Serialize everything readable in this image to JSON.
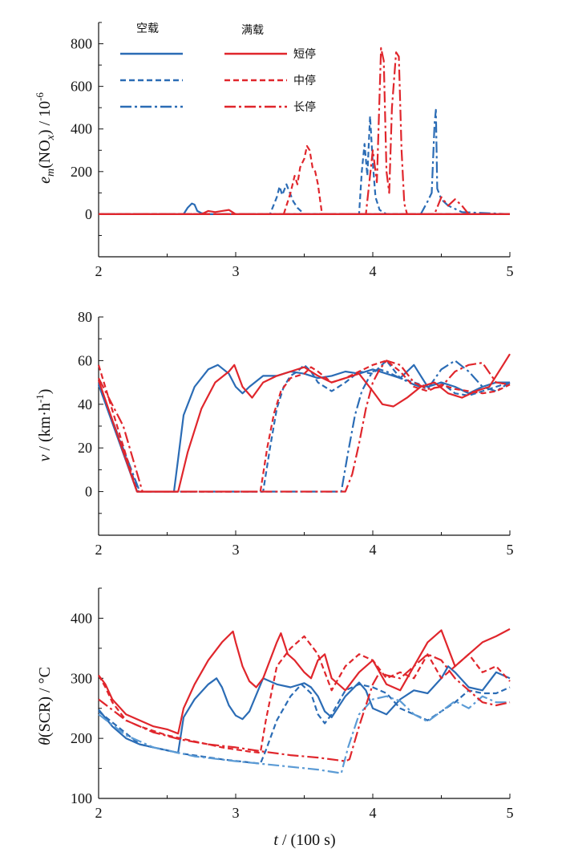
{
  "legend": {
    "group_empty": "空载",
    "group_full": "满载",
    "short": "短停",
    "medium": "中停",
    "long": "长停"
  },
  "colors": {
    "blue": "#2b6cb5",
    "light_blue": "#5b9bd5",
    "red": "#e0262c"
  },
  "chart_data": [
    {
      "type": "line",
      "id": "nox",
      "ylabel_parts": [
        "e",
        "m",
        "(NO",
        "x",
        ") / 10",
        "-6"
      ],
      "xlim": [
        2,
        5
      ],
      "ylim": [
        -200,
        900
      ],
      "xticks": [
        2,
        3,
        4,
        5
      ],
      "yticks": [
        0,
        200,
        400,
        600,
        800
      ],
      "series": [
        {
          "name": "空载-短停",
          "color": "blue",
          "dash": "solid",
          "x": [
            2.0,
            2.62,
            2.65,
            2.68,
            2.7,
            2.72,
            2.75,
            2.8,
            5.0
          ],
          "y": [
            0,
            0,
            30,
            50,
            45,
            15,
            5,
            0,
            0
          ]
        },
        {
          "name": "空载-中停",
          "color": "blue",
          "dash": "dash",
          "x": [
            2.0,
            3.25,
            3.3,
            3.32,
            3.34,
            3.37,
            3.42,
            3.45,
            3.5,
            3.9,
            3.92,
            3.94,
            3.96,
            3.98,
            4.0,
            4.02,
            4.05,
            4.1,
            5.0
          ],
          "y": [
            0,
            0,
            80,
            130,
            90,
            140,
            60,
            30,
            0,
            0,
            200,
            330,
            180,
            460,
            240,
            80,
            20,
            0,
            0
          ]
        },
        {
          "name": "空载-长停",
          "color": "blue",
          "dash": "dashdot",
          "x": [
            2.0,
            4.35,
            4.4,
            4.43,
            4.45,
            4.46,
            4.47,
            4.5,
            4.55,
            4.65,
            5.0
          ],
          "y": [
            0,
            0,
            60,
            100,
            420,
            490,
            120,
            70,
            40,
            10,
            0
          ]
        },
        {
          "name": "满载-短停",
          "color": "red",
          "dash": "solid",
          "x": [
            2.0,
            2.75,
            2.8,
            2.85,
            2.9,
            2.95,
            3.0,
            5.0
          ],
          "y": [
            0,
            0,
            15,
            10,
            15,
            20,
            0,
            0
          ]
        },
        {
          "name": "满载-中停",
          "color": "red",
          "dash": "dash",
          "x": [
            2.0,
            3.35,
            3.4,
            3.43,
            3.45,
            3.47,
            3.5,
            3.52,
            3.54,
            3.56,
            3.58,
            3.6,
            3.63,
            5.0
          ],
          "y": [
            0,
            0,
            100,
            180,
            140,
            220,
            260,
            320,
            300,
            220,
            200,
            140,
            0,
            0
          ]
        },
        {
          "name": "满载-长停",
          "color": "red",
          "dash": "dashdot",
          "x": [
            2.0,
            3.95,
            4.0,
            4.03,
            4.06,
            4.08,
            4.1,
            4.12,
            4.14,
            4.17,
            4.19,
            4.21,
            4.23,
            4.25,
            4.45,
            4.5,
            4.55,
            4.6,
            4.65,
            4.7,
            5.0
          ],
          "y": [
            0,
            0,
            300,
            150,
            780,
            720,
            200,
            100,
            500,
            760,
            740,
            300,
            50,
            0,
            0,
            80,
            40,
            70,
            40,
            0,
            0
          ]
        }
      ]
    },
    {
      "type": "line",
      "id": "speed",
      "ylabel_parts": [
        "v",
        " / (km·h",
        "-1",
        ")"
      ],
      "xlim": [
        2,
        5
      ],
      "ylim": [
        -20,
        80
      ],
      "xticks": [
        2,
        3,
        4,
        5
      ],
      "yticks": [
        0,
        20,
        40,
        60,
        80
      ],
      "series": [
        {
          "name": "空载-短停",
          "color": "blue",
          "dash": "solid",
          "x": [
            2.0,
            2.28,
            2.55,
            2.58,
            2.62,
            2.7,
            2.8,
            2.87,
            2.95,
            3.0,
            3.05,
            3.1,
            3.2,
            3.3,
            3.4,
            3.5,
            3.6,
            3.7,
            3.8,
            3.9,
            4.0,
            4.1,
            4.2,
            4.3,
            4.4,
            4.5,
            4.6,
            4.7,
            4.8,
            4.9,
            5.0
          ],
          "y": [
            49,
            0,
            0,
            15,
            35,
            48,
            56,
            58,
            54,
            48,
            45,
            48,
            53,
            53,
            55,
            54,
            52,
            53,
            55,
            54,
            56,
            54,
            52,
            58,
            48,
            50,
            48,
            45,
            48,
            50,
            50
          ]
        },
        {
          "name": "空载-中停",
          "color": "blue",
          "dash": "dash",
          "x": [
            2.0,
            2.29,
            3.2,
            3.25,
            3.3,
            3.35,
            3.4,
            3.45,
            3.5,
            3.55,
            3.6,
            3.7,
            3.8,
            3.9,
            4.0,
            4.1,
            4.2,
            4.3,
            4.4,
            4.5,
            4.6,
            4.7,
            4.8,
            4.9,
            5.0
          ],
          "y": [
            50,
            0,
            0,
            20,
            38,
            48,
            53,
            55,
            58,
            55,
            50,
            46,
            50,
            55,
            54,
            60,
            52,
            50,
            48,
            50,
            45,
            44,
            46,
            48,
            50
          ]
        },
        {
          "name": "空载-长停",
          "color": "blue",
          "dash": "dashdot",
          "x": [
            2.0,
            2.3,
            3.77,
            3.82,
            3.87,
            3.92,
            3.97,
            4.0,
            4.05,
            4.1,
            4.2,
            4.3,
            4.4,
            4.5,
            4.6,
            4.7,
            4.8,
            4.9,
            5.0
          ],
          "y": [
            49,
            0,
            0,
            18,
            35,
            46,
            52,
            55,
            56,
            55,
            52,
            49,
            47,
            56,
            60,
            55,
            48,
            46,
            50
          ]
        },
        {
          "name": "满载-短停",
          "color": "red",
          "dash": "solid",
          "x": [
            2.0,
            2.28,
            2.58,
            2.65,
            2.75,
            2.85,
            2.95,
            2.99,
            3.05,
            3.12,
            3.2,
            3.3,
            3.4,
            3.5,
            3.6,
            3.7,
            3.8,
            3.9,
            4.0,
            4.07,
            4.15,
            4.25,
            4.35,
            4.45,
            4.55,
            4.65,
            4.75,
            4.85,
            4.95,
            5.0
          ],
          "y": [
            51,
            0,
            0,
            18,
            38,
            50,
            55,
            58,
            48,
            43,
            50,
            53,
            55,
            57,
            53,
            50,
            52,
            54,
            46,
            40,
            39,
            43,
            48,
            50,
            45,
            43,
            46,
            48,
            58,
            63
          ]
        },
        {
          "name": "满载-中停",
          "color": "red",
          "dash": "dash",
          "x": [
            2.0,
            2.28,
            3.18,
            3.23,
            3.28,
            3.33,
            3.4,
            3.45,
            3.5,
            3.55,
            3.6,
            3.7,
            3.8,
            3.9,
            4.0,
            4.1,
            4.2,
            4.3,
            4.4,
            4.5,
            4.6,
            4.7,
            4.8,
            4.9,
            5.0
          ],
          "y": [
            58,
            0,
            0,
            20,
            36,
            46,
            52,
            53,
            54,
            57,
            55,
            50,
            52,
            55,
            58,
            60,
            55,
            48,
            46,
            49,
            47,
            46,
            45,
            46,
            49
          ]
        },
        {
          "name": "满载-长停",
          "color": "red",
          "dash": "dashdot",
          "x": [
            2.0,
            2.18,
            2.32,
            3.8,
            3.85,
            3.9,
            3.95,
            4.0,
            4.05,
            4.1,
            4.2,
            4.3,
            4.4,
            4.5,
            4.6,
            4.7,
            4.8,
            4.9,
            5.0
          ],
          "y": [
            52,
            30,
            0,
            0,
            8,
            22,
            38,
            50,
            56,
            60,
            58,
            50,
            47,
            48,
            55,
            58,
            59,
            50,
            49
          ]
        }
      ]
    },
    {
      "type": "line",
      "id": "temp",
      "ylabel_parts": [
        "θ",
        "(SCR) / °C"
      ],
      "xlim": [
        2,
        5
      ],
      "ylim": [
        100,
        450
      ],
      "xticks": [
        2,
        3,
        4,
        5
      ],
      "yticks": [
        100,
        200,
        300,
        400
      ],
      "series": [
        {
          "name": "空载-短停",
          "color": "blue",
          "dash": "solid",
          "x": [
            2.0,
            2.1,
            2.2,
            2.3,
            2.4,
            2.5,
            2.58,
            2.62,
            2.7,
            2.8,
            2.86,
            2.9,
            2.95,
            3.0,
            3.05,
            3.1,
            3.2,
            3.3,
            3.4,
            3.5,
            3.55,
            3.6,
            3.65,
            3.7,
            3.8,
            3.9,
            3.95,
            4.0,
            4.1,
            4.2,
            4.3,
            4.4,
            4.5,
            4.55,
            4.6,
            4.7,
            4.8,
            4.9,
            5.0
          ],
          "y": [
            248,
            220,
            200,
            190,
            185,
            180,
            176,
            235,
            265,
            290,
            300,
            285,
            255,
            238,
            232,
            245,
            300,
            290,
            285,
            292,
            285,
            270,
            245,
            235,
            270,
            293,
            280,
            250,
            240,
            265,
            280,
            275,
            300,
            320,
            310,
            285,
            280,
            310,
            300
          ]
        },
        {
          "name": "空载-中停",
          "color": "blue",
          "dash": "dash",
          "x": [
            2.0,
            2.3,
            2.6,
            2.9,
            3.1,
            3.18,
            3.22,
            3.3,
            3.4,
            3.48,
            3.55,
            3.6,
            3.65,
            3.7,
            3.8,
            3.9,
            4.0,
            4.1,
            4.2,
            4.3,
            4.4,
            4.5,
            4.6,
            4.7,
            4.8,
            4.9,
            5.0
          ],
          "y": [
            245,
            190,
            175,
            165,
            160,
            158,
            180,
            230,
            270,
            290,
            275,
            240,
            225,
            240,
            280,
            290,
            285,
            275,
            250,
            240,
            230,
            245,
            260,
            280,
            275,
            275,
            285
          ]
        },
        {
          "name": "空载-长停",
          "color": "light_blue",
          "dash": "dashdot",
          "x": [
            2.0,
            2.2,
            2.4,
            2.7,
            3.0,
            3.3,
            3.6,
            3.77,
            3.82,
            3.9,
            4.0,
            4.1,
            4.2,
            4.3,
            4.4,
            4.5,
            4.6,
            4.7,
            4.8,
            4.9,
            5.0
          ],
          "y": [
            240,
            205,
            185,
            170,
            162,
            155,
            148,
            142,
            185,
            240,
            265,
            270,
            262,
            240,
            228,
            245,
            262,
            250,
            270,
            260,
            260
          ]
        },
        {
          "name": "满载-短停",
          "color": "red",
          "dash": "solid",
          "x": [
            2.0,
            2.05,
            2.1,
            2.2,
            2.3,
            2.4,
            2.5,
            2.58,
            2.62,
            2.7,
            2.8,
            2.9,
            2.98,
            3.0,
            3.05,
            3.1,
            3.15,
            3.2,
            3.3,
            3.33,
            3.38,
            3.43,
            3.5,
            3.55,
            3.6,
            3.65,
            3.7,
            3.8,
            3.9,
            4.0,
            4.1,
            4.2,
            4.3,
            4.4,
            4.5,
            4.6,
            4.7,
            4.8,
            4.9,
            5.0
          ],
          "y": [
            305,
            290,
            265,
            240,
            230,
            220,
            215,
            208,
            250,
            290,
            330,
            360,
            378,
            360,
            320,
            295,
            285,
            300,
            360,
            375,
            340,
            330,
            310,
            300,
            330,
            340,
            300,
            280,
            310,
            330,
            290,
            280,
            320,
            360,
            380,
            320,
            340,
            360,
            370,
            382
          ]
        },
        {
          "name": "满载-中停",
          "color": "red",
          "dash": "dash",
          "x": [
            2.0,
            2.05,
            2.1,
            2.2,
            2.3,
            2.5,
            2.7,
            2.9,
            3.1,
            3.18,
            3.22,
            3.3,
            3.4,
            3.5,
            3.6,
            3.7,
            3.8,
            3.9,
            4.0,
            4.1,
            4.2,
            4.3,
            4.4,
            4.5,
            4.6,
            4.7,
            4.8,
            4.9,
            5.0
          ],
          "y": [
            305,
            285,
            260,
            230,
            220,
            205,
            195,
            185,
            178,
            176,
            230,
            320,
            350,
            370,
            340,
            280,
            320,
            340,
            330,
            300,
            310,
            300,
            340,
            300,
            320,
            340,
            310,
            320,
            295
          ]
        },
        {
          "name": "满载-长停",
          "color": "red",
          "dash": "dashdot",
          "x": [
            2.0,
            2.2,
            2.4,
            2.6,
            2.8,
            3.0,
            3.2,
            3.4,
            3.6,
            3.8,
            3.83,
            3.9,
            4.0,
            4.05,
            4.1,
            4.2,
            4.3,
            4.4,
            4.5,
            4.6,
            4.7,
            4.8,
            4.9,
            5.0
          ],
          "y": [
            265,
            230,
            210,
            198,
            190,
            185,
            178,
            172,
            168,
            162,
            165,
            220,
            290,
            310,
            305,
            300,
            320,
            340,
            330,
            300,
            280,
            260,
            255,
            260
          ]
        }
      ]
    }
  ],
  "xaxis": {
    "label": "t / (100 s)"
  }
}
